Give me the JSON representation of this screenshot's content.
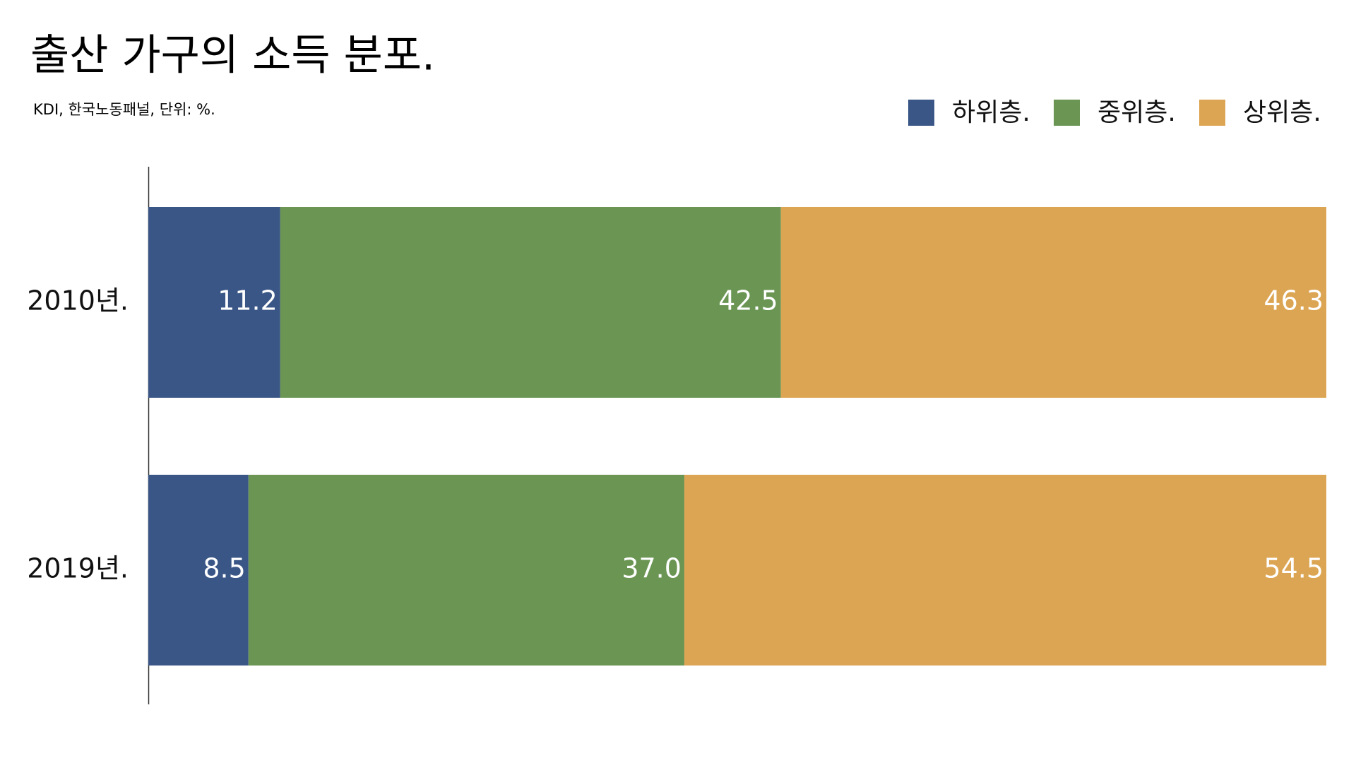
{
  "chart_data": {
    "type": "stacked-bar-horizontal",
    "title": "출산 가구의 소득 분포.",
    "subtitle": "KDI, 한국노동패널, 단위: %.",
    "categories": [
      "2010년.",
      "2019년."
    ],
    "series": [
      {
        "name": "하위층.",
        "color": "#3a5686",
        "values": [
          11.2,
          8.5
        ]
      },
      {
        "name": "중위층.",
        "color": "#6a9553",
        "values": [
          42.5,
          37.0
        ],
        "value_labels": [
          "42.5",
          "37.0"
        ]
      },
      {
        "name": "상위층.",
        "color": "#dca553",
        "values": [
          46.3,
          54.5
        ]
      }
    ],
    "xlim": [
      0,
      100
    ],
    "legend": "top-right"
  }
}
